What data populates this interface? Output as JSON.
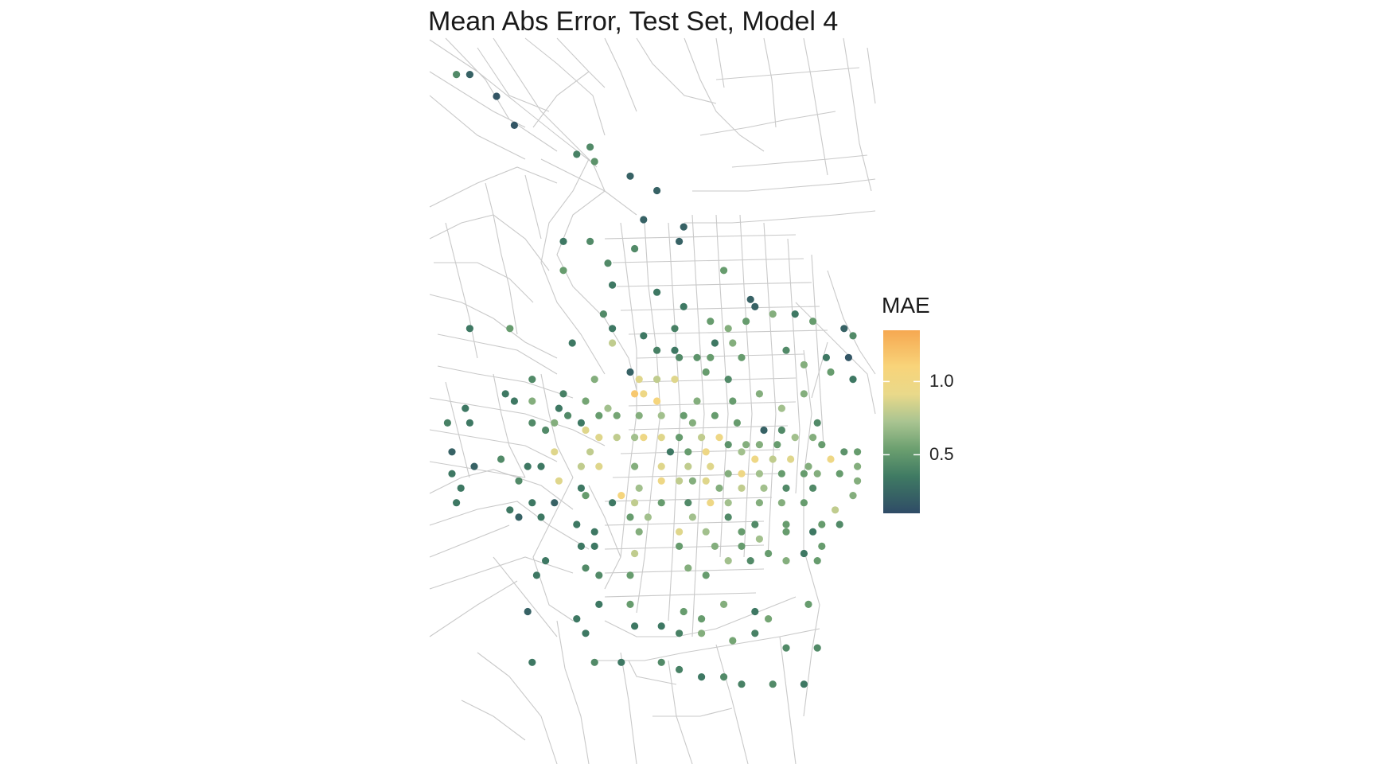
{
  "title": "Mean Abs Error, Test Set, Model 4",
  "legend": {
    "title": "MAE",
    "min": 0.1,
    "max": 1.35,
    "ticks": [
      {
        "value": 1.0,
        "label": "1.0"
      },
      {
        "value": 0.5,
        "label": "0.5"
      }
    ],
    "colors": [
      "#2f4b66",
      "#3f7a63",
      "#6b9f6f",
      "#a9c491",
      "#e9d98a",
      "#f8d47a",
      "#f6a851"
    ]
  },
  "points": [
    [
      0.06,
      0.05,
      0.4
    ],
    [
      0.09,
      0.05,
      0.2
    ],
    [
      0.15,
      0.08,
      0.15
    ],
    [
      0.19,
      0.12,
      0.15
    ],
    [
      0.33,
      0.16,
      0.35
    ],
    [
      0.36,
      0.15,
      0.4
    ],
    [
      0.37,
      0.17,
      0.45
    ],
    [
      0.45,
      0.19,
      0.2
    ],
    [
      0.51,
      0.21,
      0.2
    ],
    [
      0.48,
      0.25,
      0.2
    ],
    [
      0.57,
      0.26,
      0.2
    ],
    [
      0.56,
      0.28,
      0.2
    ],
    [
      0.46,
      0.29,
      0.4
    ],
    [
      0.36,
      0.28,
      0.4
    ],
    [
      0.3,
      0.28,
      0.3
    ],
    [
      0.3,
      0.32,
      0.5
    ],
    [
      0.4,
      0.31,
      0.4
    ],
    [
      0.41,
      0.34,
      0.3
    ],
    [
      0.51,
      0.35,
      0.3
    ],
    [
      0.57,
      0.37,
      0.3
    ],
    [
      0.72,
      0.36,
      0.2
    ],
    [
      0.66,
      0.32,
      0.5
    ],
    [
      0.73,
      0.37,
      0.2
    ],
    [
      0.39,
      0.38,
      0.4
    ],
    [
      0.41,
      0.4,
      0.3
    ],
    [
      0.55,
      0.4,
      0.35
    ],
    [
      0.63,
      0.39,
      0.5
    ],
    [
      0.67,
      0.4,
      0.6
    ],
    [
      0.71,
      0.39,
      0.5
    ],
    [
      0.77,
      0.38,
      0.6
    ],
    [
      0.82,
      0.38,
      0.3
    ],
    [
      0.86,
      0.39,
      0.5
    ],
    [
      0.93,
      0.4,
      0.2
    ],
    [
      0.95,
      0.41,
      0.4
    ],
    [
      0.48,
      0.41,
      0.3
    ],
    [
      0.55,
      0.43,
      0.3
    ],
    [
      0.64,
      0.42,
      0.3
    ],
    [
      0.09,
      0.4,
      0.3
    ],
    [
      0.18,
      0.4,
      0.5
    ],
    [
      0.32,
      0.42,
      0.3
    ],
    [
      0.41,
      0.42,
      0.8
    ],
    [
      0.51,
      0.43,
      0.35
    ],
    [
      0.56,
      0.44,
      0.4
    ],
    [
      0.6,
      0.44,
      0.45
    ],
    [
      0.63,
      0.44,
      0.5
    ],
    [
      0.68,
      0.42,
      0.6
    ],
    [
      0.7,
      0.44,
      0.5
    ],
    [
      0.8,
      0.43,
      0.4
    ],
    [
      0.84,
      0.45,
      0.6
    ],
    [
      0.89,
      0.44,
      0.3
    ],
    [
      0.9,
      0.46,
      0.5
    ],
    [
      0.95,
      0.47,
      0.3
    ],
    [
      0.94,
      0.44,
      0.15
    ],
    [
      0.45,
      0.46,
      0.2
    ],
    [
      0.47,
      0.47,
      0.9
    ],
    [
      0.51,
      0.47,
      0.8
    ],
    [
      0.55,
      0.47,
      0.9
    ],
    [
      0.62,
      0.46,
      0.5
    ],
    [
      0.67,
      0.47,
      0.4
    ],
    [
      0.37,
      0.47,
      0.6
    ],
    [
      0.3,
      0.49,
      0.35
    ],
    [
      0.29,
      0.51,
      0.3
    ],
    [
      0.23,
      0.47,
      0.4
    ],
    [
      0.17,
      0.49,
      0.3
    ],
    [
      0.19,
      0.5,
      0.3
    ],
    [
      0.23,
      0.5,
      0.6
    ],
    [
      0.35,
      0.5,
      0.55
    ],
    [
      0.4,
      0.51,
      0.7
    ],
    [
      0.46,
      0.49,
      1.2
    ],
    [
      0.48,
      0.49,
      1.0
    ],
    [
      0.51,
      0.5,
      1.1
    ],
    [
      0.6,
      0.5,
      0.6
    ],
    [
      0.68,
      0.5,
      0.5
    ],
    [
      0.74,
      0.49,
      0.6
    ],
    [
      0.79,
      0.51,
      0.7
    ],
    [
      0.84,
      0.49,
      0.6
    ],
    [
      0.08,
      0.51,
      0.3
    ],
    [
      0.04,
      0.53,
      0.35
    ],
    [
      0.09,
      0.53,
      0.3
    ],
    [
      0.23,
      0.53,
      0.4
    ],
    [
      0.31,
      0.52,
      0.4
    ],
    [
      0.34,
      0.53,
      0.3
    ],
    [
      0.38,
      0.52,
      0.5
    ],
    [
      0.42,
      0.52,
      0.55
    ],
    [
      0.47,
      0.52,
      0.6
    ],
    [
      0.52,
      0.52,
      0.7
    ],
    [
      0.57,
      0.52,
      0.5
    ],
    [
      0.59,
      0.53,
      0.6
    ],
    [
      0.64,
      0.52,
      0.5
    ],
    [
      0.69,
      0.53,
      0.5
    ],
    [
      0.75,
      0.54,
      0.2
    ],
    [
      0.79,
      0.54,
      0.4
    ],
    [
      0.87,
      0.53,
      0.4
    ],
    [
      0.26,
      0.54,
      0.4
    ],
    [
      0.28,
      0.53,
      0.6
    ],
    [
      0.35,
      0.54,
      0.9
    ],
    [
      0.38,
      0.55,
      0.9
    ],
    [
      0.42,
      0.55,
      0.8
    ],
    [
      0.46,
      0.55,
      0.7
    ],
    [
      0.48,
      0.55,
      1.0
    ],
    [
      0.52,
      0.55,
      0.9
    ],
    [
      0.56,
      0.55,
      0.5
    ],
    [
      0.61,
      0.55,
      0.8
    ],
    [
      0.65,
      0.55,
      1.0
    ],
    [
      0.67,
      0.56,
      0.45
    ],
    [
      0.71,
      0.56,
      0.6
    ],
    [
      0.74,
      0.56,
      0.6
    ],
    [
      0.78,
      0.56,
      0.5
    ],
    [
      0.82,
      0.55,
      0.7
    ],
    [
      0.86,
      0.55,
      0.6
    ],
    [
      0.88,
      0.56,
      0.5
    ],
    [
      0.93,
      0.57,
      0.45
    ],
    [
      0.96,
      0.57,
      0.5
    ],
    [
      0.05,
      0.57,
      0.2
    ],
    [
      0.1,
      0.59,
      0.2
    ],
    [
      0.05,
      0.6,
      0.3
    ],
    [
      0.28,
      0.57,
      0.9
    ],
    [
      0.36,
      0.57,
      0.8
    ],
    [
      0.54,
      0.57,
      0.3
    ],
    [
      0.58,
      0.57,
      0.5
    ],
    [
      0.62,
      0.57,
      1.0
    ],
    [
      0.7,
      0.57,
      0.7
    ],
    [
      0.73,
      0.58,
      1.0
    ],
    [
      0.77,
      0.58,
      0.8
    ],
    [
      0.81,
      0.58,
      0.9
    ],
    [
      0.85,
      0.59,
      0.6
    ],
    [
      0.9,
      0.58,
      1.0
    ],
    [
      0.96,
      0.59,
      0.6
    ],
    [
      0.16,
      0.58,
      0.4
    ],
    [
      0.22,
      0.59,
      0.3
    ],
    [
      0.25,
      0.59,
      0.3
    ],
    [
      0.34,
      0.59,
      0.8
    ],
    [
      0.38,
      0.59,
      0.9
    ],
    [
      0.46,
      0.59,
      0.6
    ],
    [
      0.52,
      0.59,
      0.9
    ],
    [
      0.58,
      0.59,
      0.8
    ],
    [
      0.63,
      0.59,
      0.9
    ],
    [
      0.67,
      0.6,
      0.6
    ],
    [
      0.7,
      0.6,
      1.0
    ],
    [
      0.74,
      0.6,
      0.7
    ],
    [
      0.79,
      0.6,
      0.5
    ],
    [
      0.84,
      0.6,
      0.5
    ],
    [
      0.87,
      0.6,
      0.6
    ],
    [
      0.92,
      0.6,
      0.5
    ],
    [
      0.96,
      0.61,
      0.6
    ],
    [
      0.2,
      0.61,
      0.4
    ],
    [
      0.29,
      0.61,
      0.9
    ],
    [
      0.34,
      0.62,
      0.3
    ],
    [
      0.47,
      0.62,
      0.7
    ],
    [
      0.52,
      0.61,
      1.0
    ],
    [
      0.56,
      0.61,
      0.8
    ],
    [
      0.59,
      0.61,
      0.6
    ],
    [
      0.62,
      0.61,
      0.9
    ],
    [
      0.65,
      0.62,
      0.6
    ],
    [
      0.7,
      0.62,
      0.8
    ],
    [
      0.75,
      0.62,
      0.7
    ],
    [
      0.8,
      0.62,
      0.4
    ],
    [
      0.86,
      0.62,
      0.4
    ],
    [
      0.95,
      0.63,
      0.6
    ],
    [
      0.07,
      0.62,
      0.3
    ],
    [
      0.06,
      0.64,
      0.3
    ],
    [
      0.23,
      0.64,
      0.3
    ],
    [
      0.28,
      0.64,
      0.2
    ],
    [
      0.35,
      0.63,
      0.5
    ],
    [
      0.41,
      0.64,
      0.3
    ],
    [
      0.43,
      0.63,
      1.1
    ],
    [
      0.46,
      0.64,
      0.8
    ],
    [
      0.52,
      0.64,
      0.5
    ],
    [
      0.58,
      0.64,
      0.4
    ],
    [
      0.63,
      0.64,
      1.0
    ],
    [
      0.67,
      0.64,
      0.7
    ],
    [
      0.74,
      0.64,
      0.6
    ],
    [
      0.79,
      0.64,
      0.6
    ],
    [
      0.84,
      0.64,
      0.5
    ],
    [
      0.91,
      0.65,
      0.8
    ],
    [
      0.18,
      0.65,
      0.3
    ],
    [
      0.2,
      0.66,
      0.2
    ],
    [
      0.25,
      0.66,
      0.3
    ],
    [
      0.45,
      0.66,
      0.5
    ],
    [
      0.49,
      0.66,
      0.7
    ],
    [
      0.59,
      0.66,
      0.7
    ],
    [
      0.67,
      0.66,
      0.4
    ],
    [
      0.73,
      0.67,
      0.4
    ],
    [
      0.8,
      0.67,
      0.5
    ],
    [
      0.88,
      0.67,
      0.5
    ],
    [
      0.92,
      0.67,
      0.4
    ],
    [
      0.33,
      0.67,
      0.3
    ],
    [
      0.37,
      0.68,
      0.3
    ],
    [
      0.47,
      0.68,
      0.6
    ],
    [
      0.56,
      0.68,
      0.9
    ],
    [
      0.62,
      0.68,
      0.7
    ],
    [
      0.7,
      0.68,
      0.5
    ],
    [
      0.74,
      0.69,
      0.7
    ],
    [
      0.8,
      0.68,
      0.5
    ],
    [
      0.86,
      0.68,
      0.3
    ],
    [
      0.88,
      0.7,
      0.5
    ],
    [
      0.34,
      0.7,
      0.3
    ],
    [
      0.37,
      0.7,
      0.3
    ],
    [
      0.46,
      0.71,
      0.8
    ],
    [
      0.56,
      0.7,
      0.5
    ],
    [
      0.64,
      0.7,
      0.6
    ],
    [
      0.7,
      0.7,
      0.5
    ],
    [
      0.76,
      0.71,
      0.5
    ],
    [
      0.84,
      0.71,
      0.3
    ],
    [
      0.26,
      0.72,
      0.3
    ],
    [
      0.24,
      0.74,
      0.3
    ],
    [
      0.35,
      0.73,
      0.4
    ],
    [
      0.38,
      0.74,
      0.4
    ],
    [
      0.45,
      0.74,
      0.5
    ],
    [
      0.58,
      0.73,
      0.6
    ],
    [
      0.62,
      0.74,
      0.5
    ],
    [
      0.67,
      0.72,
      0.7
    ],
    [
      0.72,
      0.72,
      0.4
    ],
    [
      0.8,
      0.72,
      0.6
    ],
    [
      0.87,
      0.72,
      0.5
    ],
    [
      0.22,
      0.79,
      0.2
    ],
    [
      0.38,
      0.78,
      0.3
    ],
    [
      0.45,
      0.78,
      0.5
    ],
    [
      0.57,
      0.79,
      0.5
    ],
    [
      0.61,
      0.8,
      0.5
    ],
    [
      0.66,
      0.78,
      0.6
    ],
    [
      0.73,
      0.79,
      0.3
    ],
    [
      0.76,
      0.8,
      0.55
    ],
    [
      0.85,
      0.78,
      0.5
    ],
    [
      0.33,
      0.8,
      0.3
    ],
    [
      0.35,
      0.82,
      0.3
    ],
    [
      0.46,
      0.81,
      0.3
    ],
    [
      0.52,
      0.81,
      0.3
    ],
    [
      0.56,
      0.82,
      0.35
    ],
    [
      0.61,
      0.82,
      0.6
    ],
    [
      0.68,
      0.83,
      0.55
    ],
    [
      0.73,
      0.82,
      0.35
    ],
    [
      0.8,
      0.84,
      0.4
    ],
    [
      0.87,
      0.84,
      0.4
    ],
    [
      0.23,
      0.86,
      0.3
    ],
    [
      0.37,
      0.86,
      0.4
    ],
    [
      0.43,
      0.86,
      0.3
    ],
    [
      0.52,
      0.86,
      0.4
    ],
    [
      0.56,
      0.87,
      0.35
    ],
    [
      0.61,
      0.88,
      0.3
    ],
    [
      0.66,
      0.88,
      0.4
    ],
    [
      0.7,
      0.89,
      0.35
    ],
    [
      0.77,
      0.89,
      0.4
    ],
    [
      0.84,
      0.89,
      0.3
    ]
  ]
}
